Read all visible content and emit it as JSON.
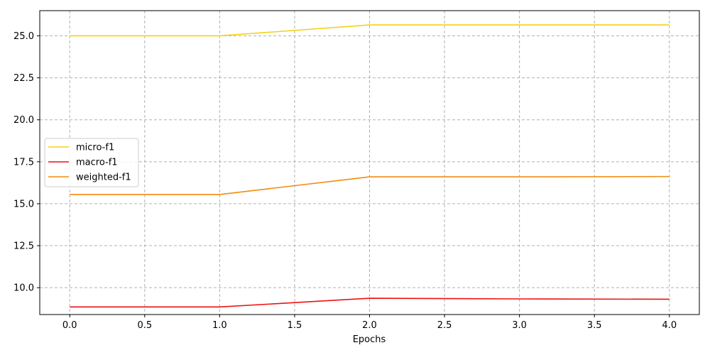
{
  "chart_data": {
    "type": "line",
    "title": "",
    "xlabel": "Epochs",
    "ylabel": "",
    "xlim": [
      -0.2,
      4.2
    ],
    "ylim": [
      8.4,
      26.5
    ],
    "xticks": [
      0.0,
      0.5,
      1.0,
      1.5,
      2.0,
      2.5,
      3.0,
      3.5,
      4.0
    ],
    "xtick_labels": [
      "0.0",
      "0.5",
      "1.0",
      "1.5",
      "2.0",
      "2.5",
      "3.0",
      "3.5",
      "4.0"
    ],
    "yticks": [
      10.0,
      12.5,
      15.0,
      17.5,
      20.0,
      22.5,
      25.0
    ],
    "ytick_labels": [
      "10.0",
      "12.5",
      "15.0",
      "17.5",
      "20.0",
      "22.5",
      "25.0"
    ],
    "grid": true,
    "legend_position": "center-left",
    "x": [
      0,
      1,
      2,
      3,
      4
    ],
    "series": [
      {
        "name": "micro-f1",
        "color": "#f5d018",
        "values": [
          25.0,
          25.0,
          25.65,
          25.65,
          25.65
        ]
      },
      {
        "name": "macro-f1",
        "color": "#ee1111",
        "values": [
          8.85,
          8.85,
          9.37,
          9.33,
          9.31
        ]
      },
      {
        "name": "weighted-f1",
        "color": "#f08c10",
        "values": [
          15.55,
          15.55,
          16.6,
          16.6,
          16.62
        ]
      }
    ]
  }
}
